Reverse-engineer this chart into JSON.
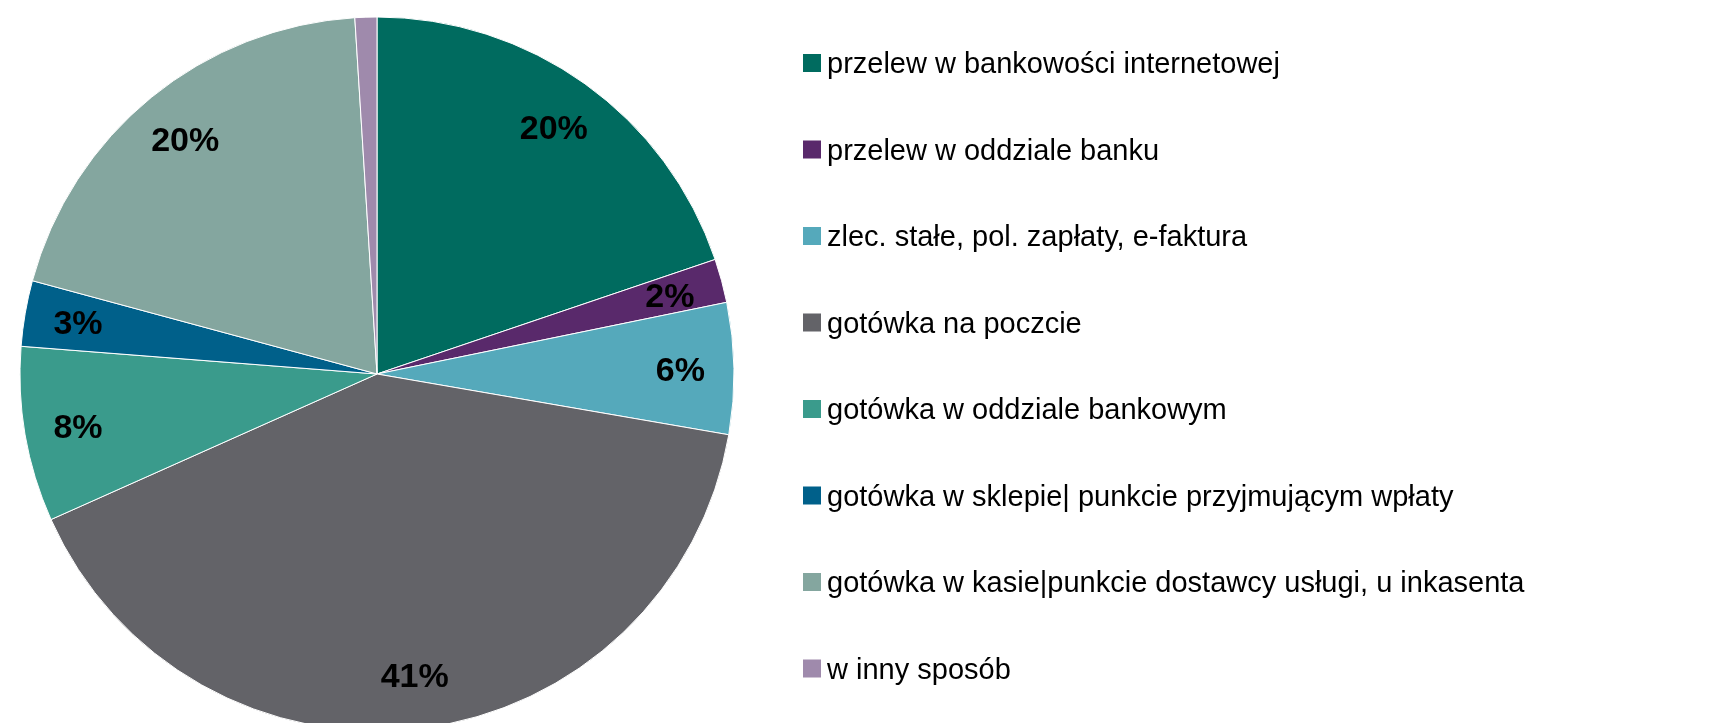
{
  "chart_data": {
    "type": "pie",
    "categories": [
      "przelew w bankowości internetowej",
      "przelew w oddziale banku",
      "zlec. stałe, pol. zapłaty, e-faktura",
      "gotówka na poczcie",
      "gotówka w oddziale bankowym",
      "gotówka w sklepie| punkcie przyjmującym wpłaty",
      "gotówka w kasie|punkcie dostawcy usługi, u inkasenta",
      "w inny sposób"
    ],
    "values": [
      20,
      2,
      6,
      41,
      8,
      3,
      20,
      1
    ],
    "value_labels": [
      "20%",
      "2%",
      "6%",
      "41%",
      "8%",
      "3%",
      "20%",
      null
    ],
    "colors": [
      "#006b5f",
      "#59296b",
      "#55a9bb",
      "#636368",
      "#3a9b8c",
      "#00608a",
      "#84a69f",
      "#9f8aac"
    ],
    "legend": "right"
  }
}
